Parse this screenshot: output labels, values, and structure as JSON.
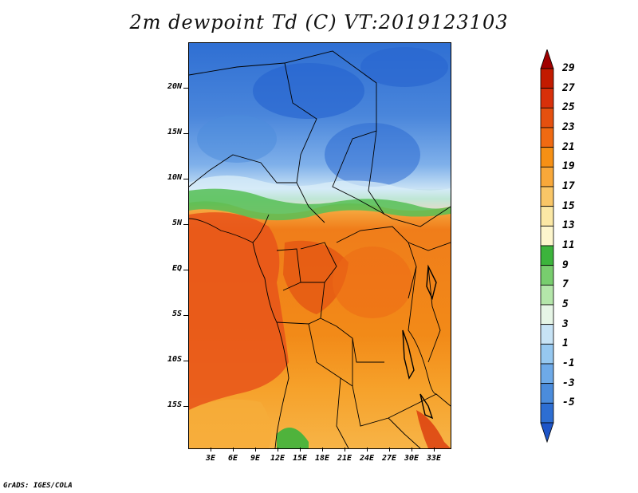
{
  "title": "2m dewpoint Td (C) VT:2019123103",
  "footer": "GrADS: IGES/COLA",
  "map": {
    "lat_labels": [
      "20N",
      "15N",
      "10N",
      "5N",
      "EQ",
      "5S",
      "10S",
      "15S"
    ],
    "lon_labels": [
      "3E",
      "6E",
      "9E",
      "12E",
      "15E",
      "18E",
      "21E",
      "24E",
      "27E",
      "30E",
      "33E"
    ]
  },
  "colorbar": {
    "labels": [
      "29",
      "27",
      "25",
      "23",
      "21",
      "19",
      "17",
      "15",
      "13",
      "11",
      "9",
      "7",
      "5",
      "3",
      "1",
      "-1",
      "-3",
      "-5"
    ],
    "colors": [
      "#a00000",
      "#c21a00",
      "#d8300a",
      "#e5500f",
      "#f06a12",
      "#f69015",
      "#f8a83a",
      "#f9c667",
      "#fbe8a5",
      "#fdf6cd",
      "#3cb43c",
      "#78cd6e",
      "#b4e6aa",
      "#e6f5e6",
      "#c7e3f5",
      "#96c8f0",
      "#6eaae8",
      "#4b8cdc",
      "#2d6ed2",
      "#1e55c8"
    ]
  }
}
